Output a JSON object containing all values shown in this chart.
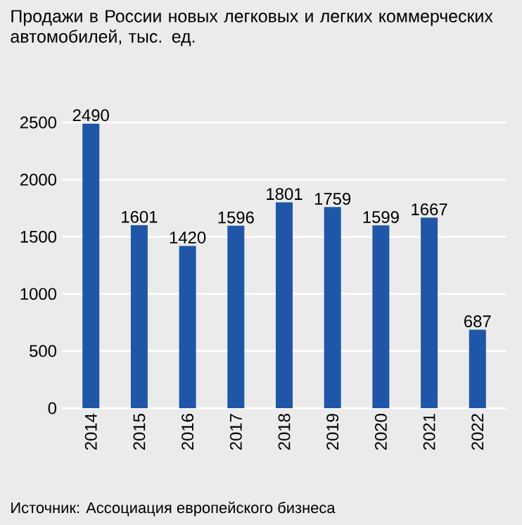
{
  "chart_data": {
    "type": "bar",
    "title": "Продажи в России новых легковых и легких коммерческих автомобилей, тыс. ед.",
    "categories": [
      "2014",
      "2015",
      "2016",
      "2017",
      "2018",
      "2019",
      "2020",
      "2021",
      "2022"
    ],
    "values": [
      2490,
      1601,
      1420,
      1596,
      1801,
      1759,
      1599,
      1667,
      687
    ],
    "color": "#1f56a8",
    "ylim": [
      0,
      2500
    ],
    "yticks": [
      0,
      500,
      1000,
      1500,
      2000,
      2500
    ],
    "grid": "y",
    "data_labels": true,
    "annotations": [
      "Источник: Ассоциация европейского бизнеса"
    ]
  }
}
